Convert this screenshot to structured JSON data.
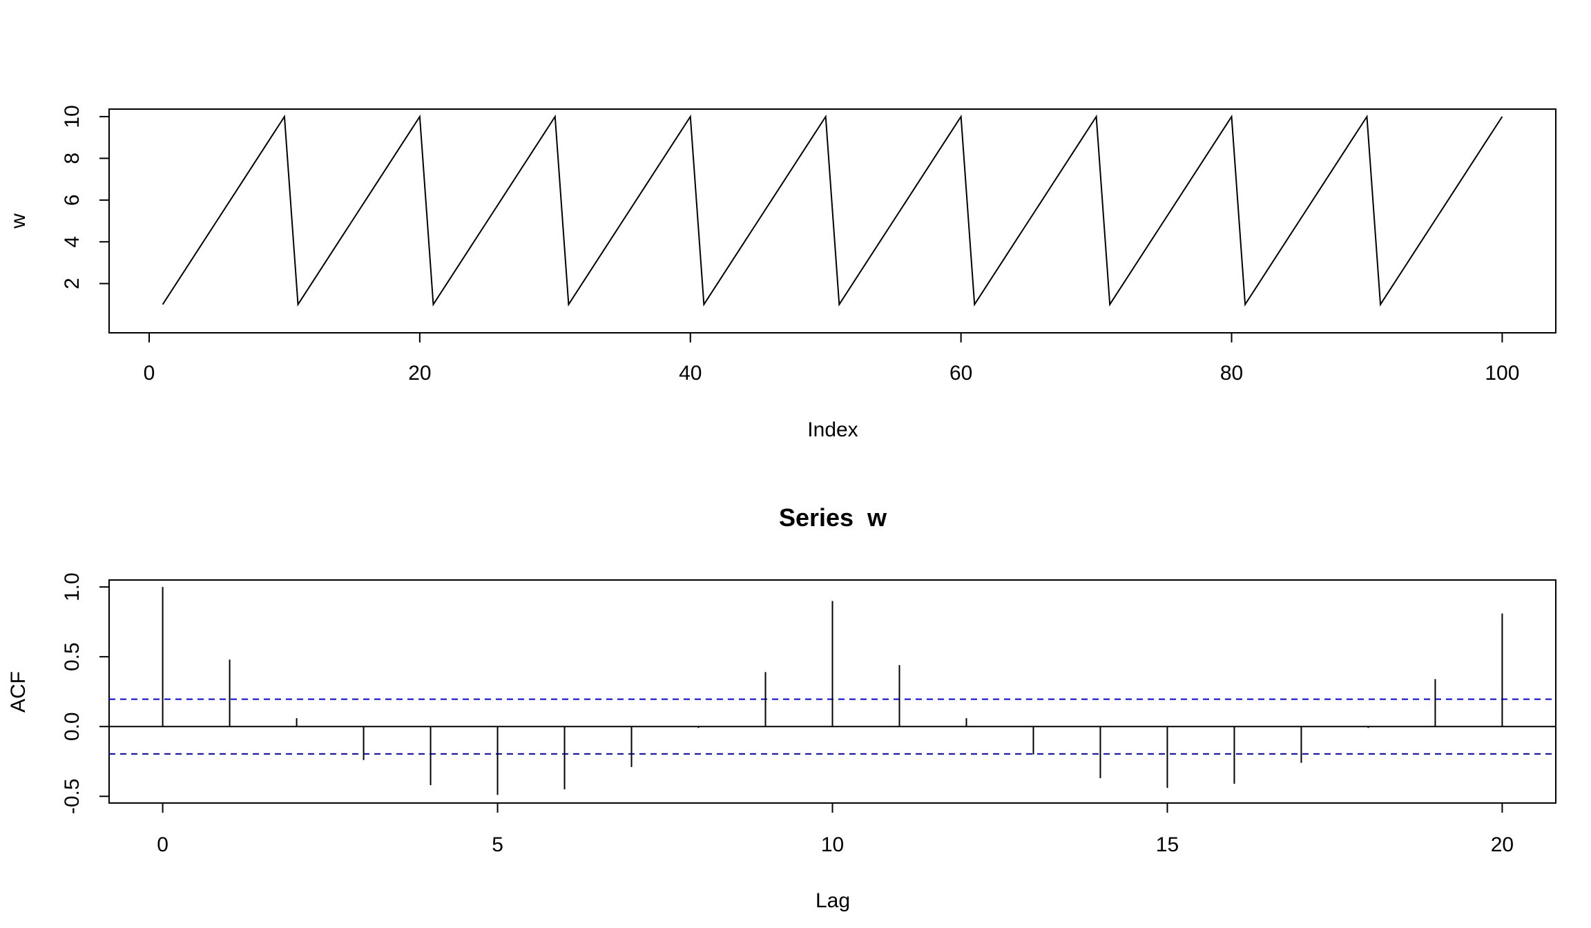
{
  "chart_data": [
    {
      "type": "line",
      "title": "",
      "xlabel": "Index",
      "ylabel": "w",
      "x": [
        1,
        2,
        3,
        4,
        5,
        6,
        7,
        8,
        9,
        10,
        11,
        12,
        13,
        14,
        15,
        16,
        17,
        18,
        19,
        20,
        21,
        22,
        23,
        24,
        25,
        26,
        27,
        28,
        29,
        30,
        31,
        32,
        33,
        34,
        35,
        36,
        37,
        38,
        39,
        40,
        41,
        42,
        43,
        44,
        45,
        46,
        47,
        48,
        49,
        50,
        51,
        52,
        53,
        54,
        55,
        56,
        57,
        58,
        59,
        60,
        61,
        62,
        63,
        64,
        65,
        66,
        67,
        68,
        69,
        70,
        71,
        72,
        73,
        74,
        75,
        76,
        77,
        78,
        79,
        80,
        81,
        82,
        83,
        84,
        85,
        86,
        87,
        88,
        89,
        90,
        91,
        92,
        93,
        94,
        95,
        96,
        97,
        98,
        99,
        100
      ],
      "values": [
        1,
        2,
        3,
        4,
        5,
        6,
        7,
        8,
        9,
        10,
        1,
        2,
        3,
        4,
        5,
        6,
        7,
        8,
        9,
        10,
        1,
        2,
        3,
        4,
        5,
        6,
        7,
        8,
        9,
        10,
        1,
        2,
        3,
        4,
        5,
        6,
        7,
        8,
        9,
        10,
        1,
        2,
        3,
        4,
        5,
        6,
        7,
        8,
        9,
        10,
        1,
        2,
        3,
        4,
        5,
        6,
        7,
        8,
        9,
        10,
        1,
        2,
        3,
        4,
        5,
        6,
        7,
        8,
        9,
        10,
        1,
        2,
        3,
        4,
        5,
        6,
        7,
        8,
        9,
        10,
        1,
        2,
        3,
        4,
        5,
        6,
        7,
        8,
        9,
        10,
        1,
        2,
        3,
        4,
        5,
        6,
        7,
        8,
        9,
        10
      ],
      "xlim": [
        -2.96,
        103.96
      ],
      "ylim": [
        -0.36,
        10.36
      ],
      "xticks": [
        0,
        20,
        40,
        60,
        80,
        100
      ],
      "xtick_labels": [
        "0",
        "20",
        "40",
        "60",
        "80",
        "100"
      ],
      "yticks": [
        2,
        4,
        6,
        8,
        10
      ],
      "ytick_labels": [
        "2",
        "4",
        "6",
        "8",
        "10"
      ],
      "color": "#000000",
      "grid": false
    },
    {
      "type": "bar",
      "title": "Series  w",
      "xlabel": "Lag",
      "ylabel": "ACF",
      "lags": [
        0,
        1,
        2,
        3,
        4,
        5,
        6,
        7,
        8,
        9,
        10,
        11,
        12,
        13,
        14,
        15,
        16,
        17,
        18,
        19,
        20
      ],
      "values": [
        1.0,
        0.48,
        0.06,
        -0.24,
        -0.42,
        -0.49,
        -0.45,
        -0.29,
        -0.01,
        0.39,
        0.9,
        0.44,
        0.06,
        -0.2,
        -0.37,
        -0.44,
        -0.41,
        -0.26,
        -0.01,
        0.34,
        0.81
      ],
      "confidence_band": 0.196,
      "confidence_color": "#0000ff",
      "xlim": [
        -0.8,
        20.8
      ],
      "ylim": [
        -0.548,
        1.05
      ],
      "xticks": [
        0,
        5,
        10,
        15,
        20
      ],
      "xtick_labels": [
        "0",
        "5",
        "10",
        "15",
        "20"
      ],
      "yticks": [
        -0.5,
        0.0,
        0.5,
        1.0
      ],
      "ytick_labels": [
        "-0.5",
        "0.0",
        "0.5",
        "1.0"
      ],
      "color": "#000000",
      "grid": false
    }
  ]
}
